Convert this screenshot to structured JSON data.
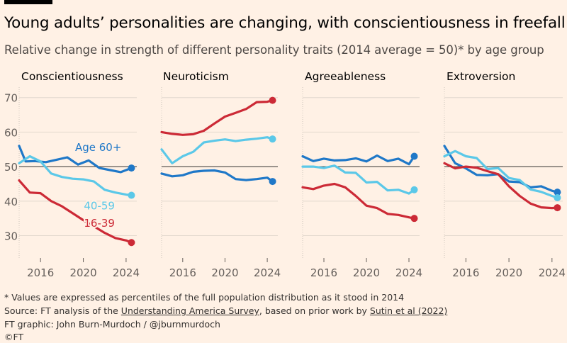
{
  "title": "Young adults’ personalities are changing, with conscientiousness in freefall",
  "subtitle": "Relative change in strength of different personality traits (2014 average = 50)* by age group",
  "footnote": "* Values are expressed as percentiles of the full population distribution as it stood in 2014",
  "source": {
    "prefix": "Source: FT analysis of the ",
    "link1": "Understanding America Survey",
    "middle": ", based on prior work by ",
    "link2": "Sutin et al (2022)"
  },
  "credit": "FT graphic: John Burn-Murdoch / @jburnmurdoch",
  "copyright": "©FT",
  "colors": {
    "background": "#fff1e5",
    "age_60_plus": "#1f78c8",
    "age_40_59": "#5bc8e8",
    "age_16_39": "#cc2a36",
    "gridline": "#e2d8ce",
    "baseline": "#33302e"
  },
  "chart_data": {
    "type": "line",
    "x_range": [
      2014,
      2025
    ],
    "x_ticks": [
      2016,
      2020,
      2024
    ],
    "x_tick_labels": [
      "2016",
      "2020",
      "2024"
    ],
    "ylim": [
      26,
      72
    ],
    "y_ticks": [
      30,
      40,
      50,
      60,
      70
    ],
    "y_tick_labels": [
      "30",
      "40",
      "50",
      "60",
      "70"
    ],
    "reference_line": 50,
    "series_labels": [
      {
        "panel": 0,
        "series": "60+",
        "text": "Age 60+",
        "x": 2021.4,
        "y": 54.5
      },
      {
        "panel": 0,
        "series": "40-59",
        "text": "40-59",
        "x": 2021.5,
        "y": 37.6
      },
      {
        "panel": 0,
        "series": "16-39",
        "text": "16-39",
        "x": 2021.5,
        "y": 32.6
      }
    ],
    "panels": [
      {
        "title": "Conscientiousness",
        "series": [
          {
            "name": "60+",
            "x": [
              2014,
              2014.6,
              2015.5,
              2016.5,
              2017.5,
              2018.5,
              2019.5,
              2020.5,
              2021.5,
              2022.5,
              2023.5,
              2024.5
            ],
            "y": [
              56,
              51.5,
              51.6,
              51.3,
              52,
              52.7,
              50.6,
              51.8,
              49.6,
              49,
              48.4,
              49.6
            ]
          },
          {
            "name": "40-59",
            "x": [
              2014,
              2015,
              2016,
              2017,
              2018,
              2019,
              2020,
              2021,
              2022,
              2023,
              2024,
              2024.5
            ],
            "y": [
              51,
              53,
              51.5,
              48,
              47,
              46.5,
              46.3,
              45.7,
              43.3,
              42.5,
              41.9,
              41.7
            ]
          },
          {
            "name": "16-39",
            "x": [
              2014,
              2015,
              2016,
              2017,
              2018,
              2019,
              2020,
              2021,
              2022,
              2023,
              2024,
              2024.5
            ],
            "y": [
              46,
              42.5,
              42.3,
              40,
              38.5,
              36.5,
              34.5,
              32.7,
              30.8,
              29.3,
              28.6,
              28
            ]
          }
        ]
      },
      {
        "title": "Neuroticism",
        "series": [
          {
            "name": "16-39",
            "x": [
              2014,
              2015,
              2016,
              2017,
              2018,
              2019,
              2020,
              2021,
              2022,
              2023,
              2024,
              2024.5
            ],
            "y": [
              60,
              59.5,
              59.2,
              59.4,
              60.4,
              62.5,
              64.5,
              65.6,
              66.7,
              68.7,
              68.8,
              69.2
            ]
          },
          {
            "name": "40-59",
            "x": [
              2014,
              2015,
              2016,
              2017,
              2018,
              2019,
              2020,
              2021,
              2022,
              2023,
              2024,
              2024.5
            ],
            "y": [
              55,
              51,
              53,
              54.3,
              57,
              57.5,
              57.9,
              57.4,
              57.8,
              58.1,
              58.5,
              58
            ]
          },
          {
            "name": "60+",
            "x": [
              2014,
              2015,
              2016,
              2017,
              2018,
              2019,
              2020,
              2021,
              2022,
              2023,
              2024,
              2024.5
            ],
            "y": [
              48,
              47.2,
              47.5,
              48.5,
              48.8,
              48.9,
              48.3,
              46.4,
              46.1,
              46.4,
              46.8,
              45.7
            ]
          }
        ]
      },
      {
        "title": "Agreeableness",
        "series": [
          {
            "name": "60+",
            "x": [
              2014,
              2015,
              2016,
              2017,
              2018,
              2019,
              2020,
              2021,
              2022,
              2023,
              2024,
              2024.5
            ],
            "y": [
              53,
              51.6,
              52.3,
              51.8,
              51.9,
              52.4,
              51.5,
              53.2,
              51.6,
              52.3,
              50.7,
              53
            ]
          },
          {
            "name": "40-59",
            "x": [
              2014,
              2015,
              2016,
              2017,
              2018,
              2019,
              2020,
              2021,
              2022,
              2023,
              2024,
              2024.5
            ],
            "y": [
              50,
              50,
              49.6,
              50.3,
              48.3,
              48.2,
              45.4,
              45.6,
              43.1,
              43.3,
              42.2,
              43.3
            ]
          },
          {
            "name": "16-39",
            "x": [
              2014,
              2015,
              2016,
              2017,
              2018,
              2019,
              2020,
              2021,
              2022,
              2023,
              2024,
              2024.5
            ],
            "y": [
              44,
              43.5,
              44.5,
              45,
              44,
              41.5,
              38.7,
              38,
              36.3,
              36,
              35.3,
              35
            ]
          }
        ]
      },
      {
        "title": "Extroversion",
        "series": [
          {
            "name": "60+",
            "x": [
              2014,
              2015,
              2016,
              2017,
              2018,
              2019,
              2020,
              2021,
              2022,
              2023,
              2024,
              2024.5
            ],
            "y": [
              56,
              51,
              49.5,
              47.6,
              47.5,
              47.8,
              45.7,
              45.5,
              44,
              44.3,
              43,
              42.6
            ]
          },
          {
            "name": "40-59",
            "x": [
              2014,
              2015,
              2016,
              2017,
              2018,
              2019,
              2020,
              2021,
              2022,
              2023,
              2024,
              2024.5
            ],
            "y": [
              53,
              54.5,
              53,
              52.5,
              49.3,
              49.6,
              46.7,
              46.1,
              43.4,
              42.7,
              41.5,
              41
            ]
          },
          {
            "name": "16-39",
            "x": [
              2014,
              2015,
              2016,
              2017,
              2018,
              2019,
              2020,
              2021,
              2022,
              2023,
              2024,
              2024.5
            ],
            "y": [
              51,
              49.5,
              50,
              49.7,
              48.7,
              47.8,
              44.3,
              41.5,
              39.3,
              38.2,
              38,
              38.1
            ]
          }
        ]
      }
    ]
  }
}
